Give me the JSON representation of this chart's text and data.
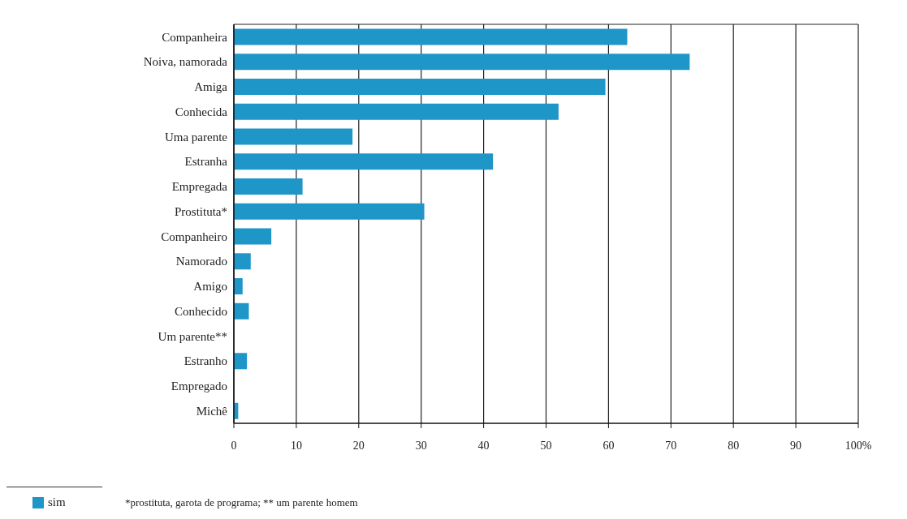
{
  "chart_data": {
    "type": "bar",
    "orientation": "horizontal",
    "categories": [
      "Companheira",
      "Noiva, namorada",
      "Amiga",
      "Conhecida",
      "Uma parente",
      "Estranha",
      "Empregada",
      "Prostituta*",
      "Companheiro",
      "Namorado",
      "Amigo",
      "Conhecido",
      "Um parente**",
      "Estranho",
      "Empregado",
      "Michê"
    ],
    "series": [
      {
        "name": "sim",
        "color": "#1e96c8",
        "values": [
          63,
          73,
          59.5,
          52,
          19,
          41.5,
          11,
          30.5,
          6,
          2.7,
          1.4,
          2.4,
          0,
          2.1,
          0,
          0.7
        ]
      }
    ],
    "xlim": [
      0,
      100
    ],
    "xticks": [
      0,
      10,
      20,
      30,
      40,
      50,
      60,
      70,
      80,
      90,
      {
        "value": 100,
        "label": "100%"
      }
    ],
    "grid": "x",
    "legend": "bottom left",
    "annotations": [
      "*prostituta, garota de programa; ** um parente homem"
    ]
  }
}
